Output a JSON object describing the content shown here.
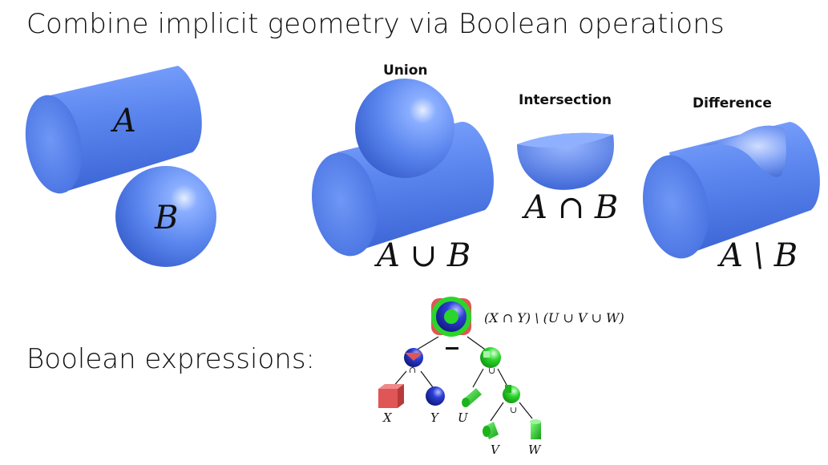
{
  "title": "Combine implicit geometry via Boolean operations",
  "subtitle": "Boolean expressions:",
  "operands": {
    "a": "A",
    "b": "B"
  },
  "operations": {
    "union": {
      "label": "Union",
      "expression": "A ∪ B"
    },
    "intersection": {
      "label": "Intersection",
      "expression": "A ∩ B"
    },
    "difference": {
      "label": "Difference",
      "expression": "A \\ B"
    }
  },
  "csg_tree": {
    "root_expression": "(X ∩ Y) \\ (U ∪ V ∪ W)",
    "root_operator": "−",
    "operators": {
      "intersect": "∩",
      "union_1": "∪",
      "union_2": "∪"
    },
    "leaves": {
      "x": "X",
      "y": "Y",
      "u": "U",
      "v": "V",
      "w": "W"
    }
  },
  "colors": {
    "shape_blue": "#5b86ee",
    "tree_green": "#2bd62b",
    "tree_red": "#e05555",
    "tree_blue": "#1f2fb8"
  }
}
